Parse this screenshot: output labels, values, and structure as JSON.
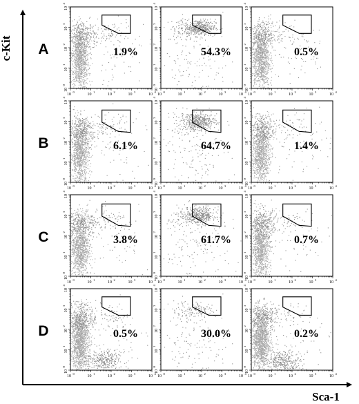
{
  "axes": {
    "x_title": "Sca-1",
    "y_title": "c-Kit"
  },
  "chart_data": {
    "type": "scatter",
    "xlabel": "Sca-1",
    "ylabel": "c-Kit",
    "log_scale": true,
    "xlim": [
      1,
      10000
    ],
    "ylim": [
      1,
      10000
    ],
    "tick_labels": [
      "10",
      "10",
      "10",
      "10",
      "10"
    ],
    "tick_exponents": [
      "0",
      "1",
      "2",
      "3",
      "4"
    ],
    "rows": [
      {
        "label": "A",
        "panels": [
          {
            "percent": "1.9%",
            "gate": "narrow"
          },
          {
            "percent": "54.3%",
            "gate": "narrow"
          },
          {
            "percent": "0.5%",
            "gate": "narrow"
          }
        ]
      },
      {
        "label": "B",
        "panels": [
          {
            "percent": "6.1%",
            "gate": "wide"
          },
          {
            "percent": "64.7%",
            "gate": "wide"
          },
          {
            "percent": "1.4%",
            "gate": "wide"
          }
        ]
      },
      {
        "label": "C",
        "panels": [
          {
            "percent": "3.8%",
            "gate": "wide"
          },
          {
            "percent": "61.7%",
            "gate": "wide"
          },
          {
            "percent": "0.7%",
            "gate": "wide"
          }
        ]
      },
      {
        "label": "D",
        "panels": [
          {
            "percent": "0.5%",
            "gate": "narrow"
          },
          {
            "percent": "30.0%",
            "gate": "narrow"
          },
          {
            "percent": "0.2%",
            "gate": "narrow"
          }
        ]
      }
    ]
  },
  "colors": {
    "dots": "#8c8c8c",
    "dense_dots": "#a8a8a8",
    "lines": "#000000",
    "background": "#ffffff"
  }
}
